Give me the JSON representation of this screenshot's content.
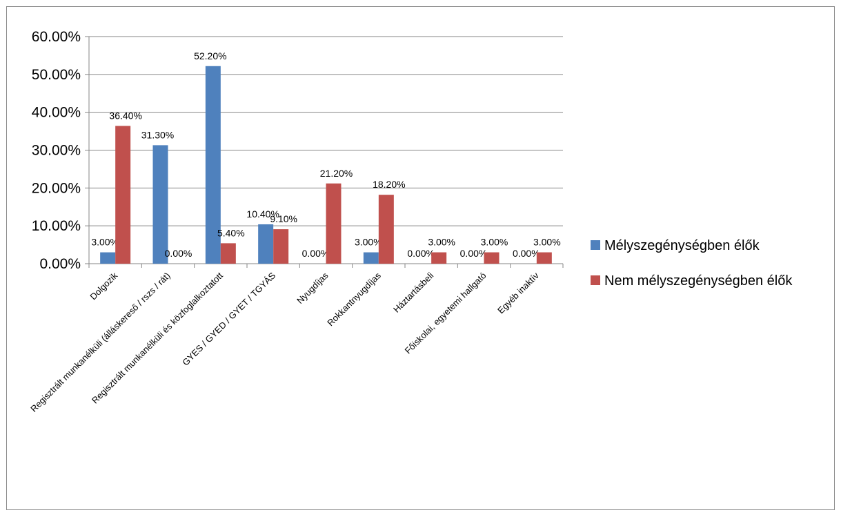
{
  "chart_data": {
    "type": "bar",
    "categories": [
      "Dolgozik",
      "Regisztrált munkanélküli (álláskereső / rszs / rát)",
      "Regisztrált munkanélküli és közfoglalkoztatott",
      "GYES / GYED / GYET / TGYÁS",
      "Nyugdíjas",
      "Rokkantnyugdíjas",
      "Háztartásbeli",
      "Főiskolai, egyetemi hallgató",
      "Egyéb inaktív"
    ],
    "series": [
      {
        "name": "Mélyszegénységben élők",
        "color": "#4f81bd",
        "values": [
          3.0,
          31.3,
          52.2,
          10.4,
          0.0,
          3.0,
          0.0,
          0.0,
          0.0
        ],
        "labels": [
          "3.00%",
          "31.30%",
          "52.20%",
          "10.40%",
          "0.00%",
          "3.00%",
          "0.00%",
          "0.00%",
          "0.00%"
        ]
      },
      {
        "name": "Nem mélyszegénységben élők",
        "color": "#c0504d",
        "values": [
          36.4,
          0.0,
          5.4,
          9.1,
          21.2,
          18.2,
          3.0,
          3.0,
          3.0
        ],
        "labels": [
          "36.40%",
          "0.00%",
          "5.40%",
          "9.10%",
          "21.20%",
          "18.20%",
          "3.00%",
          "3.00%",
          "3.00%"
        ]
      }
    ],
    "yticks": [
      "0.00%",
      "10.00%",
      "20.00%",
      "30.00%",
      "40.00%",
      "50.00%",
      "60.00%"
    ],
    "ylim": [
      0,
      60
    ],
    "grid": true,
    "legend_position": "right",
    "title": "",
    "xlabel": "",
    "ylabel": ""
  }
}
